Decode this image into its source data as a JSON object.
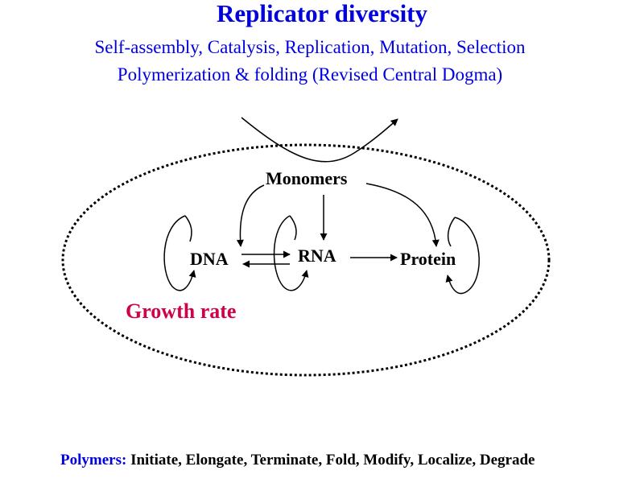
{
  "title": "Replicator diversity",
  "subtitle_line1": "Self-assembly, Catalysis, Replication, Mutation, Selection",
  "subtitle_line2": "Polymerization & folding (Revised Central Dogma)",
  "nodes": {
    "monomers": "Monomers",
    "dna": "DNA",
    "rna": "RNA",
    "protein": "Protein"
  },
  "growth_rate": "Growth rate",
  "footer": {
    "lead": "Polymers:",
    "rest": " Initiate, Elongate, Terminate, Fold, Modify, Localize, Degrade"
  },
  "colors": {
    "title": "#0000e0",
    "growth_rate": "#d0004a",
    "lines": "#000000"
  }
}
